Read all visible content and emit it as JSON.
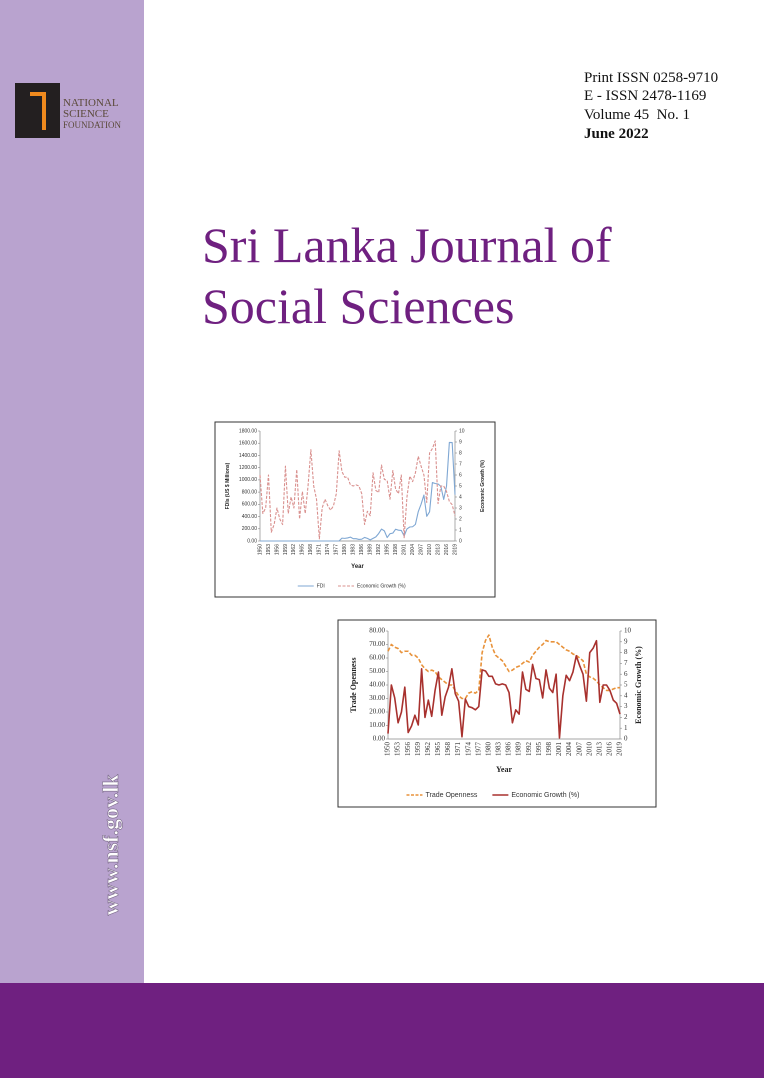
{
  "logo": {
    "lines": [
      "NATIONAL",
      "SCIENCE",
      "FOUNDATION"
    ]
  },
  "website": "www.nsf.gov.lk",
  "header": {
    "print_issn": "Print ISSN 0258-9710",
    "e_issn": "E - ISSN 2478-1169",
    "volume": "Volume 45  No. 1",
    "date": "June 2022"
  },
  "title": [
    "Sri Lanka Journal of",
    "Social Sciences"
  ],
  "chart_data": [
    {
      "type": "line",
      "ytitle": "FDIs (US $ Millions)",
      "y2title": "Economic Growth (%)",
      "xtitle": "Year",
      "categories": [
        "1950",
        null,
        null,
        "1953",
        null,
        null,
        "1956",
        null,
        null,
        "1959",
        null,
        null,
        "1962",
        null,
        null,
        "1965",
        null,
        null,
        "1968",
        null,
        null,
        "1971",
        null,
        null,
        "1974",
        null,
        null,
        "1977",
        null,
        null,
        "1980",
        null,
        null,
        "1983",
        null,
        null,
        "1986",
        null,
        null,
        "1989",
        null,
        null,
        "1992",
        null,
        null,
        "1995",
        null,
        null,
        "1998",
        null,
        null,
        "2001",
        null,
        null,
        "2004",
        null,
        null,
        "2007",
        null,
        null,
        "2010",
        null,
        null,
        "2013",
        null,
        null,
        "2016",
        null,
        null,
        "2019"
      ],
      "series": [
        {
          "name": "FDI",
          "color": "#7fa7d3",
          "style": "solid",
          "values": [
            0,
            0,
            0,
            0,
            0,
            0,
            0,
            0,
            0,
            0,
            0,
            0,
            0,
            0,
            0,
            0,
            0,
            0,
            0,
            0,
            0,
            0,
            0,
            0,
            0,
            0,
            0,
            0,
            2,
            47,
            43,
            50,
            64,
            38,
            38,
            26,
            30,
            58,
            43,
            18,
            43,
            67,
            123,
            195,
            166,
            56,
            120,
            129,
            193,
            177,
            173,
            82,
            197,
            229,
            233,
            272,
            480,
            603,
            752,
            404,
            478,
            956,
            941,
            933,
            894,
            680,
            897,
            1613,
            1611,
            758
          ]
        },
        {
          "name": "Economic Growth (%)",
          "color": "#d9908e",
          "style": "dashed",
          "axis": "y2",
          "values": [
            6,
            2.5,
            3,
            6,
            0.8,
            1.5,
            3,
            2,
            1.5,
            6.8,
            2.5,
            4,
            3,
            6.5,
            2,
            4.5,
            2.5,
            5,
            8.3,
            5,
            3.8,
            0.2,
            3,
            3.8,
            3.2,
            2.8,
            3.2,
            4.3,
            8.2,
            6.3,
            5.8,
            5.8,
            5.1,
            5,
            5.1,
            5,
            4.3,
            1.5,
            2.7,
            2.3,
            6.2,
            4.6,
            4.4,
            6.9,
            5.6,
            5.5,
            3.8,
            6.4,
            4.7,
            4.3,
            6,
            0.3,
            4,
            5.9,
            5.4,
            6.2,
            7.7,
            6.8,
            6,
            3.5,
            8,
            8.4,
            9.1,
            3.4,
            5,
            5,
            4.5,
            3.6,
            3.3,
            2.3
          ]
        }
      ],
      "ylim": [
        0,
        1800
      ],
      "yticks": [
        {
          "value": 0,
          "label": "0.00"
        },
        {
          "value": 200,
          "label": "200.00"
        },
        {
          "value": 400,
          "label": "400.00"
        },
        {
          "value": 600,
          "label": "600.00"
        },
        {
          "value": 800,
          "label": "800.00"
        },
        {
          "value": 1000,
          "label": "1000.00"
        },
        {
          "value": 1200,
          "label": "1200.00"
        },
        {
          "value": 1400,
          "label": "1400.00"
        },
        {
          "value": 1600,
          "label": "1600.00"
        },
        {
          "value": 1800,
          "label": "1800.00"
        }
      ],
      "y2lim": [
        0,
        10
      ],
      "y2ticks": [
        0,
        1,
        2,
        3,
        4,
        5,
        6,
        7,
        8,
        9,
        10
      ],
      "grid": false,
      "legend": "bottom"
    },
    {
      "type": "line",
      "ytitle": "Trade Openness",
      "y2title": "Economic Growth (%)",
      "xtitle": "Year",
      "categories": [
        "1950",
        null,
        null,
        "1953",
        null,
        null,
        "1956",
        null,
        null,
        "1959",
        null,
        null,
        "1962",
        null,
        null,
        "1965",
        null,
        null,
        "1968",
        null,
        null,
        "1971",
        null,
        null,
        "1974",
        null,
        null,
        "1977",
        null,
        null,
        "1980",
        null,
        null,
        "1983",
        null,
        null,
        "1986",
        null,
        null,
        "1989",
        null,
        null,
        "1992",
        null,
        null,
        "1995",
        null,
        null,
        "1998",
        null,
        null,
        "2001",
        null,
        null,
        "2004",
        null,
        null,
        "2007",
        null,
        null,
        "2010",
        null,
        null,
        "2013",
        null,
        null,
        "2016",
        null,
        null,
        "2019"
      ],
      "series": [
        {
          "name": "Trade Openness",
          "color": "#e8923a",
          "style": "dashed",
          "values": [
            65,
            70,
            68,
            67,
            64,
            65,
            65,
            62,
            62,
            60,
            55,
            52,
            50,
            51,
            50,
            46,
            44,
            42,
            40,
            40,
            36,
            32,
            30,
            30,
            34,
            35,
            34,
            36,
            64,
            73,
            77,
            68,
            62,
            60,
            58,
            54,
            50,
            51,
            53,
            54,
            56,
            58,
            57,
            62,
            65,
            68,
            70,
            73,
            72,
            72,
            72,
            70,
            68,
            66,
            65,
            63,
            62,
            60,
            58,
            48,
            46,
            45,
            43,
            40,
            38,
            36,
            36,
            37,
            38,
            38
          ]
        },
        {
          "name": "Economic Growth (%)",
          "color": "#a8312e",
          "style": "solid",
          "axis": "y2",
          "values": [
            0.5,
            5,
            3.8,
            1.5,
            2.5,
            4.8,
            0.6,
            1.2,
            2.2,
            1.3,
            6.5,
            2,
            3.6,
            2.1,
            4.5,
            6.2,
            2.2,
            3.9,
            4.8,
            6.5,
            4.2,
            3.5,
            0.2,
            3.7,
            3,
            2.9,
            2.7,
            3,
            6.4,
            6.3,
            5.8,
            5.8,
            5.1,
            5,
            5.1,
            5,
            4.3,
            1.5,
            2.7,
            2.3,
            6.2,
            4.6,
            4.4,
            6.9,
            5.6,
            5.5,
            3.8,
            6.4,
            4.7,
            4.3,
            6,
            0.1,
            4,
            5.9,
            5.4,
            6.2,
            7.7,
            6.8,
            6,
            3.5,
            8,
            8.4,
            9.1,
            3.4,
            5,
            5,
            4.5,
            3.6,
            3.3,
            2.3
          ]
        }
      ],
      "ylim": [
        0,
        80
      ],
      "yticks": [
        {
          "value": 0,
          "label": "0.00"
        },
        {
          "value": 10,
          "label": "10.00"
        },
        {
          "value": 20,
          "label": "20.00"
        },
        {
          "value": 30,
          "label": "30.00"
        },
        {
          "value": 40,
          "label": "40.00"
        },
        {
          "value": 50,
          "label": "50.00"
        },
        {
          "value": 60,
          "label": "60.00"
        },
        {
          "value": 70,
          "label": "70.00"
        },
        {
          "value": 80,
          "label": "80.00"
        }
      ],
      "y2lim": [
        0,
        10
      ],
      "y2ticks": [
        0,
        1,
        2,
        3,
        4,
        5,
        6,
        7,
        8,
        9,
        10
      ],
      "grid": false,
      "legend": "bottom"
    }
  ]
}
